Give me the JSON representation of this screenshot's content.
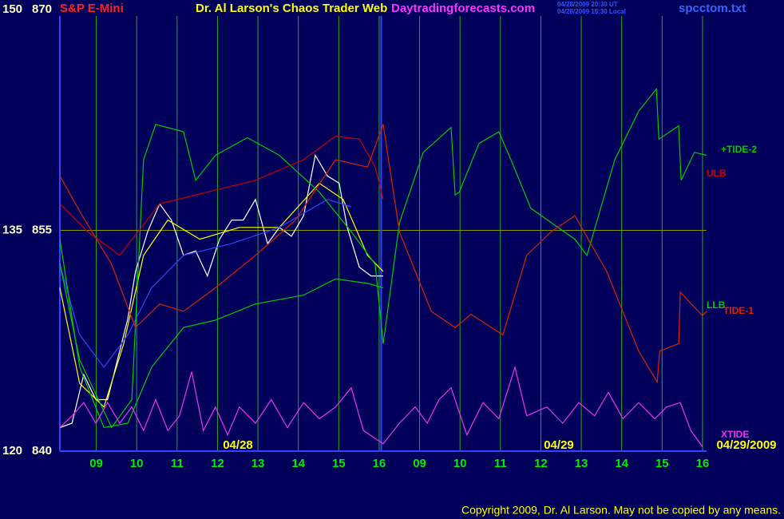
{
  "chart_data": {
    "type": "line",
    "title": "Dr. Al Larson's Chaos Trader Web",
    "instrument": "S&P E-Mini",
    "site": "Daytradingforecasts.com",
    "timestamps": [
      "04/28/2009 20:30 UT",
      "04/28/2009 15:30 Local"
    ],
    "file": "spcctom.txt",
    "copyright": "Copyright 2009, Dr. Al Larson. May not be copied by any means.",
    "date_labels": [
      "04/28",
      "04/29",
      "04/29/2009"
    ],
    "background": "#00005a",
    "grid": true,
    "xlim": [
      -0.9,
      15.1
    ],
    "xticks": [
      {
        "value": 0,
        "label": "09"
      },
      {
        "value": 1,
        "label": "10"
      },
      {
        "value": 2,
        "label": "11"
      },
      {
        "value": 3,
        "label": "12"
      },
      {
        "value": 4,
        "label": "13"
      },
      {
        "value": 5,
        "label": "14"
      },
      {
        "value": 6,
        "label": "15"
      },
      {
        "value": 7,
        "label": "16"
      },
      {
        "value": 8,
        "label": "09"
      },
      {
        "value": 9,
        "label": "10"
      },
      {
        "value": 10,
        "label": "11"
      },
      {
        "value": 11,
        "label": "12"
      },
      {
        "value": 12,
        "label": "13"
      },
      {
        "value": 13,
        "label": "14"
      },
      {
        "value": 14,
        "label": "15"
      },
      {
        "value": 15,
        "label": "16"
      }
    ],
    "ylim": [
      840,
      870
    ],
    "yticks": [
      840,
      855,
      870
    ],
    "y2lim": [
      120,
      150
    ],
    "y2ticks": [
      120,
      135,
      150
    ],
    "series": [
      {
        "color": "#ffffff",
        "x": [
          -0.9,
          -0.6,
          -0.31,
          -0.01,
          0.28,
          0.58,
          0.78,
          0.97,
          1.27,
          1.57,
          1.86,
          2.16,
          2.46,
          2.75,
          3.05,
          3.35,
          3.64,
          3.94,
          4.24,
          4.53,
          4.83,
          5.13,
          5.42,
          5.72,
          6.01,
          6.21,
          6.51,
          6.8,
          7.1
        ],
        "values": [
          841.6,
          841.9,
          845.2,
          843.5,
          843.5,
          846.8,
          849.0,
          852.2,
          854.9,
          856.8,
          855.7,
          853.3,
          853.6,
          851.9,
          854.4,
          855.7,
          855.7,
          857.1,
          854.1,
          855.2,
          854.6,
          856.0,
          860.1,
          858.7,
          858.2,
          855.2,
          852.5,
          851.9,
          851.9
        ]
      },
      {
        "color": "#ffff00",
        "x": [
          -0.9,
          -0.41,
          0.19,
          0.68,
          1.17,
          1.77,
          2.56,
          3.54,
          4.53,
          5.52,
          6.11,
          6.71,
          7.1
        ],
        "values": [
          851.1,
          844.6,
          843.0,
          847.3,
          853.3,
          855.7,
          854.4,
          855.2,
          855.2,
          858.2,
          857.1,
          853.3,
          852.2
        ]
      },
      {
        "color": "#3344ff",
        "x": [
          -0.9,
          -0.41,
          0.19,
          0.78,
          1.37,
          2.16,
          3.35,
          4.53,
          5.72,
          6.31
        ],
        "values": [
          852.7,
          847.9,
          845.7,
          847.9,
          851.1,
          853.3,
          854.1,
          855.2,
          857.1,
          856.6
        ]
      },
      {
        "name": "+TIDE-2",
        "color": "#00cc00",
        "x": [
          -0.9,
          -0.41,
          0.38,
          0.88,
          1.17,
          1.47,
          2.16,
          2.46,
          2.95,
          3.74,
          4.53,
          5.52,
          6.31,
          6.9,
          7.1,
          7.5,
          8.09,
          8.78,
          8.88,
          8.98,
          9.47,
          9.96,
          10.26,
          10.75,
          11.84,
          12.14,
          12.83,
          13.42,
          13.86,
          13.92,
          14.41,
          14.47,
          14.8,
          15.1
        ],
        "values": [
          852.75,
          846.2,
          841.6,
          843.5,
          859.8,
          862.2,
          861.7,
          858.4,
          860.1,
          861.3,
          860.1,
          857.6,
          854.9,
          852.7,
          847.3,
          855.5,
          860.3,
          862.0,
          857.4,
          857.6,
          860.9,
          861.7,
          859.8,
          856.5,
          854.4,
          853.3,
          859.8,
          863.1,
          864.6,
          861.2,
          862.1,
          858.4,
          860.3,
          860.1
        ]
      },
      {
        "name": "ULB",
        "color": "#cc0000",
        "x": [
          -0.9,
          -0.21,
          0.58,
          1.57,
          2.75,
          3.94,
          5.13,
          5.92,
          6.51,
          6.9,
          7.1
        ],
        "values": [
          856.8,
          854.9,
          853.3,
          856.8,
          857.6,
          858.4,
          859.8,
          861.4,
          861.2,
          859.3,
          857.1
        ]
      },
      {
        "name": "LLB",
        "color": "#00cc00",
        "x": [
          -0.9,
          -0.41,
          0.19,
          0.78,
          1.37,
          2.16,
          2.95,
          3.94,
          5.13,
          5.92,
          6.71,
          7.1
        ],
        "values": [
          854.4,
          845.7,
          841.6,
          841.9,
          845.7,
          848.4,
          848.9,
          850.0,
          850.6,
          851.7,
          851.4,
          851.1
        ]
      },
      {
        "name": "TIDE-1",
        "color": "#dd2200",
        "x": [
          -0.9,
          -0.41,
          0.38,
          0.97,
          1.57,
          2.16,
          2.95,
          3.94,
          4.93,
          5.92,
          6.71,
          7.1,
          7.5,
          8.29,
          8.88,
          9.27,
          10.06,
          10.65,
          11.25,
          11.84,
          12.63,
          13.42,
          13.88,
          13.94,
          14.41,
          14.45,
          15.0,
          15.1
        ],
        "values": [
          858.7,
          856.3,
          852.7,
          848.4,
          850.0,
          849.5,
          851.1,
          853.3,
          855.7,
          859.8,
          859.3,
          862.2,
          854.9,
          849.5,
          848.4,
          849.3,
          847.9,
          853.3,
          854.9,
          856.0,
          852.2,
          846.8,
          844.7,
          846.8,
          847.3,
          850.8,
          849.2,
          849.5
        ]
      },
      {
        "name": "XTIDE",
        "color": "#ee33ee",
        "axis": "y2",
        "x": [
          -0.9,
          -0.6,
          -0.31,
          -0.01,
          0.28,
          0.58,
          0.88,
          1.17,
          1.47,
          1.77,
          2.06,
          2.36,
          2.65,
          2.95,
          3.25,
          3.54,
          3.94,
          4.33,
          4.73,
          5.13,
          5.52,
          5.92,
          6.31,
          6.61,
          7.1,
          7.5,
          7.89,
          8.19,
          8.48,
          8.78,
          9.17,
          9.57,
          9.96,
          10.36,
          10.65,
          11.15,
          11.54,
          11.94,
          12.33,
          12.67,
          13.03,
          13.42,
          13.82,
          14.11,
          14.45,
          14.71,
          15.0
        ],
        "values": [
          121.6,
          122.4,
          123.3,
          121.9,
          123.3,
          121.9,
          123.0,
          121.4,
          123.5,
          121.4,
          122.4,
          125.4,
          121.4,
          123.0,
          121.1,
          123.0,
          121.9,
          123.5,
          121.6,
          123.3,
          122.2,
          123.0,
          124.3,
          121.4,
          120.5,
          121.9,
          123.0,
          121.9,
          123.5,
          124.3,
          121.1,
          123.3,
          122.2,
          125.7,
          122.4,
          123.0,
          121.9,
          123.3,
          122.4,
          124.0,
          122.2,
          123.3,
          122.2,
          123.0,
          123.3,
          121.4,
          120.3
        ]
      }
    ]
  }
}
